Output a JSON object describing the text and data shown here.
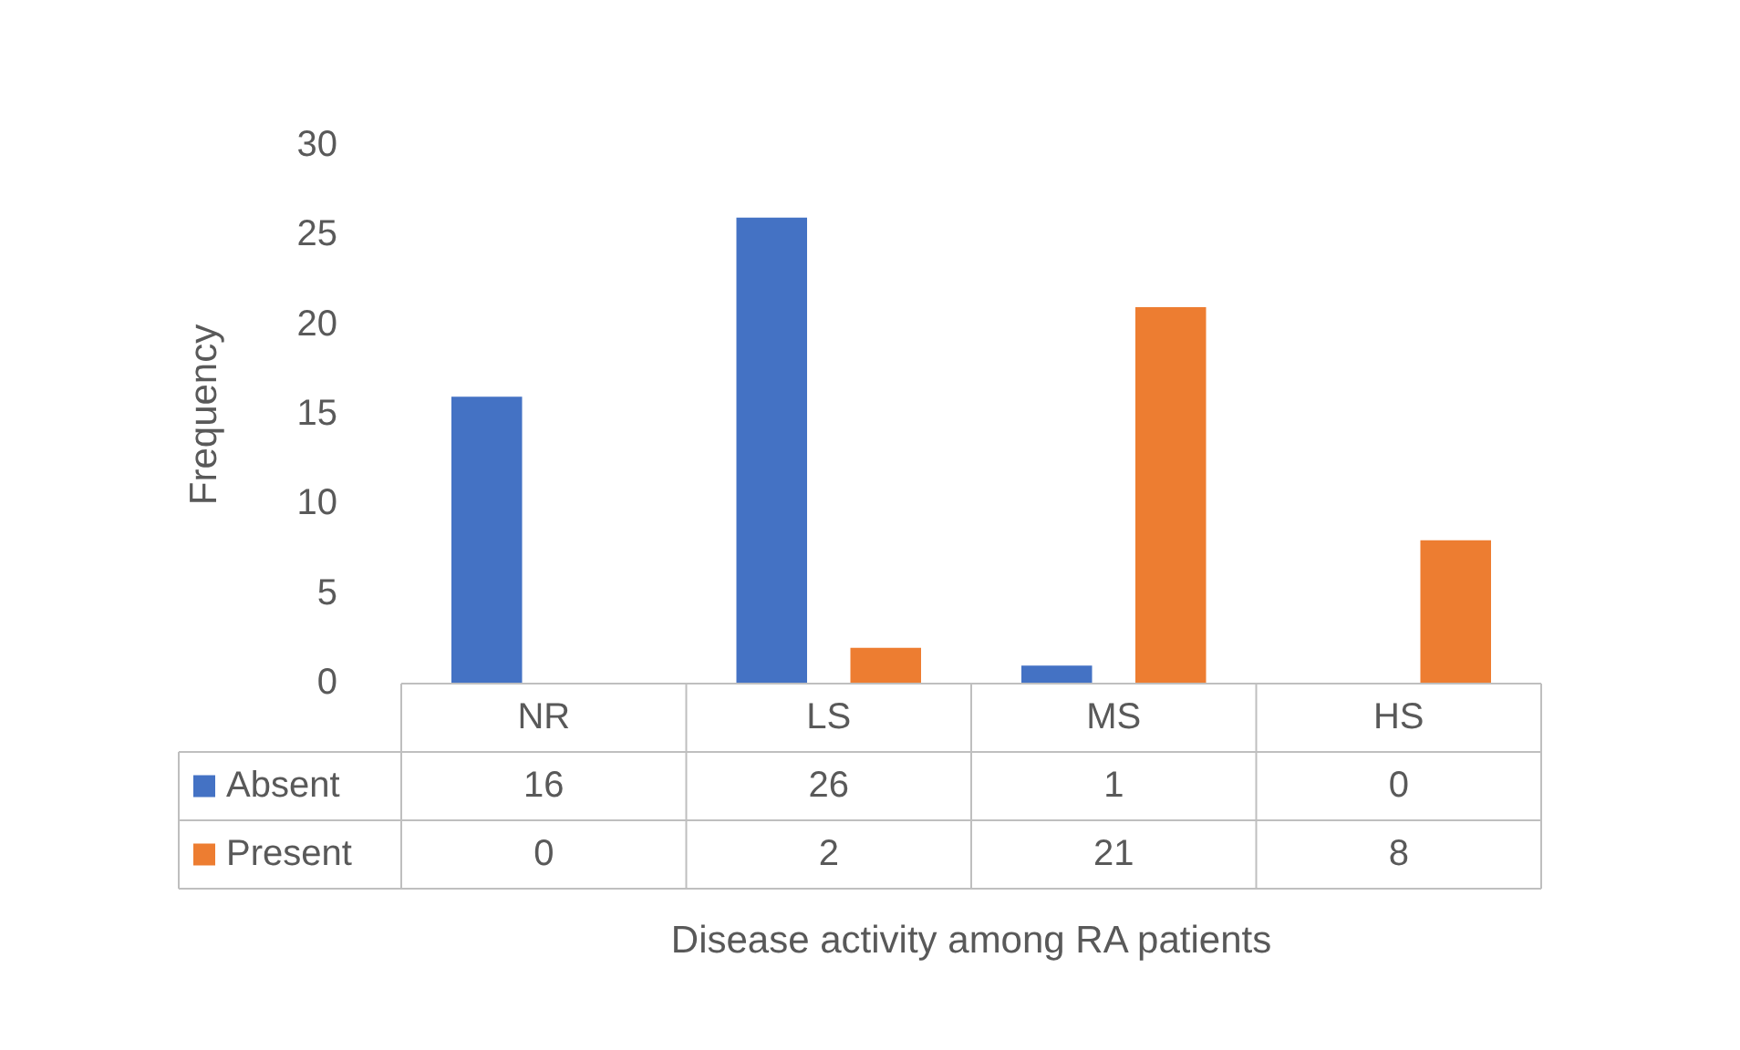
{
  "chart_data": {
    "type": "bar",
    "xlabel": "Disease activity among RA patients",
    "ylabel": "Frequency",
    "categories": [
      "NR",
      "LS",
      "MS",
      "HS"
    ],
    "series": [
      {
        "name": "Absent",
        "color": "#4472c4",
        "values": [
          16,
          26,
          1,
          0
        ]
      },
      {
        "name": "Present",
        "color": "#ed7d31",
        "values": [
          0,
          2,
          21,
          8
        ]
      }
    ],
    "ylim": [
      0,
      30
    ],
    "yticks": [
      0,
      5,
      10,
      15,
      20,
      25,
      30
    ],
    "legend": "bottom",
    "data_labels": true
  }
}
